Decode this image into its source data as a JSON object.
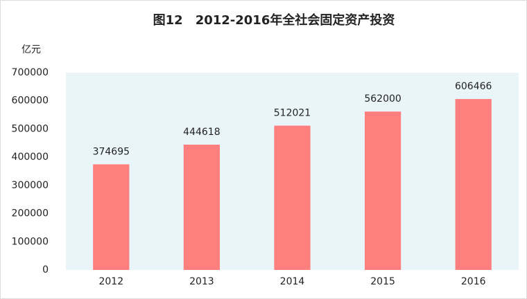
{
  "chart_data": {
    "type": "bar",
    "title": "图12　2012-2016年全社会固定资产投资",
    "y_label": "亿元",
    "categories": [
      "2012",
      "2013",
      "2014",
      "2015",
      "2016"
    ],
    "values": [
      374695,
      444618,
      512021,
      562000,
      606466
    ],
    "color": "#ff7f7f",
    "ylim": [
      0,
      700000
    ],
    "yticks": [
      0,
      100000,
      200000,
      300000,
      400000,
      500000,
      600000,
      700000
    ],
    "grid": false
  }
}
